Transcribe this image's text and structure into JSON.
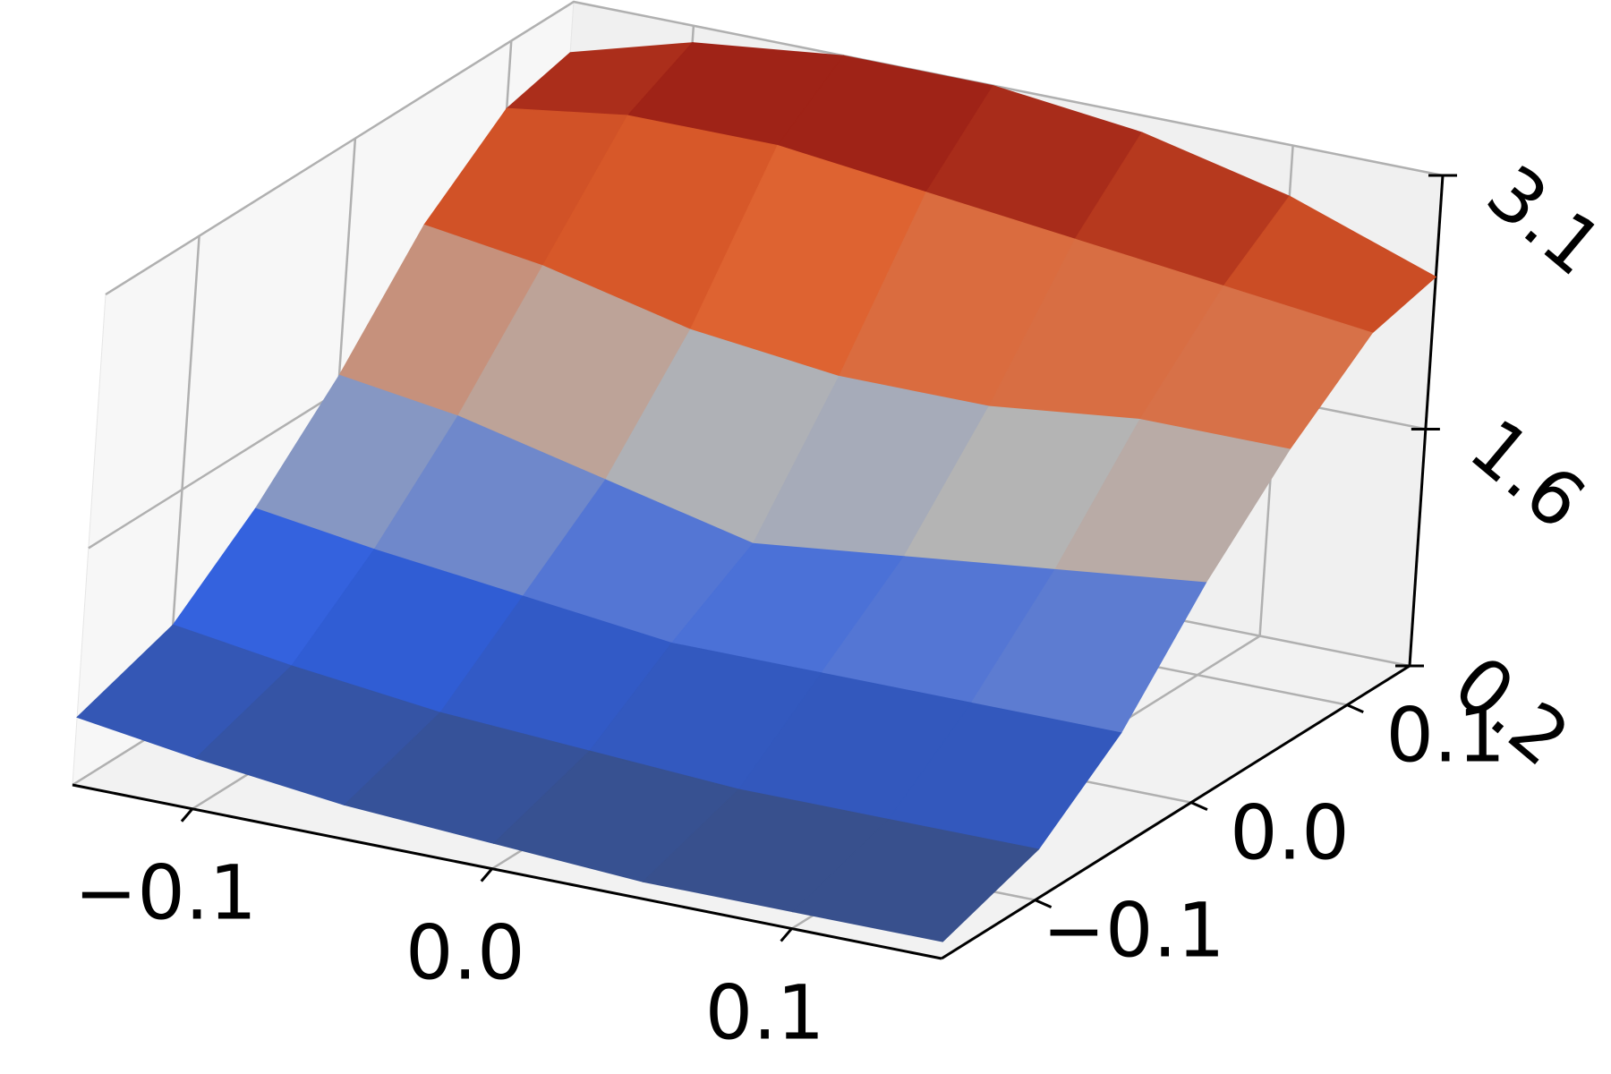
{
  "chart_data": {
    "type": "surface",
    "x": [
      -0.14,
      -0.1,
      -0.05,
      0,
      0.05,
      0.1,
      0.15
    ],
    "y": [
      -0.16,
      -0.1,
      -0.05,
      0,
      0.05,
      0.1,
      0.14
    ],
    "z": [
      [
        0.6,
        0.5,
        0.4,
        0.35,
        0.3,
        0.3,
        0.3
      ],
      [
        0.8,
        0.7,
        0.6,
        0.55,
        0.5,
        0.5,
        0.5
      ],
      [
        1.2,
        1.1,
        1.0,
        0.9,
        0.9,
        0.9,
        0.9
      ],
      [
        1.7,
        1.6,
        1.4,
        1.2,
        1.3,
        1.4,
        1.5
      ],
      [
        2.3,
        2.2,
        2.0,
        1.9,
        1.9,
        2.0,
        2.0
      ],
      [
        2.7,
        2.8,
        2.8,
        2.7,
        2.6,
        2.5,
        2.4
      ],
      [
        2.8,
        3.0,
        3.1,
        3.1,
        3.0,
        2.8,
        2.5
      ]
    ],
    "xlim": [
      -0.14,
      0.15
    ],
    "ylim": [
      -0.16,
      0.14
    ],
    "zlim": [
      0.2,
      3.1
    ],
    "xticks": [
      {
        "value": -0.1,
        "label": "−0.1"
      },
      {
        "value": 0,
        "label": "0.0"
      },
      0.1
    ],
    "yticks": [
      {
        "value": -0.1,
        "label": "−0.1"
      },
      {
        "value": 0,
        "label": "0.0"
      },
      0.1
    ],
    "zticks": [
      0.2,
      1.6,
      3.1
    ],
    "colormap": [
      "#3b4a6e",
      "#2f5fe0",
      "#b4b4b4",
      "#e0602c",
      "#8a1010"
    ],
    "grid": true
  }
}
